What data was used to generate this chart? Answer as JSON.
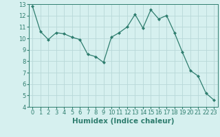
{
  "x": [
    0,
    1,
    2,
    3,
    4,
    5,
    6,
    7,
    8,
    9,
    10,
    11,
    12,
    13,
    14,
    15,
    16,
    17,
    18,
    19,
    20,
    21,
    22,
    23
  ],
  "y": [
    12.8,
    10.6,
    9.9,
    10.5,
    10.4,
    10.1,
    9.9,
    8.6,
    8.4,
    7.9,
    10.1,
    10.5,
    11.0,
    12.1,
    10.9,
    12.5,
    11.7,
    12.0,
    10.5,
    8.8,
    7.2,
    6.7,
    5.2,
    4.6
  ],
  "line_color": "#2e7d6e",
  "marker": "D",
  "marker_size": 2.0,
  "bg_color": "#d6f0ef",
  "grid_color": "#b8d8d8",
  "xlabel": "Humidex (Indice chaleur)",
  "xlim": [
    -0.5,
    23.5
  ],
  "ylim": [
    4,
    13
  ],
  "yticks": [
    4,
    5,
    6,
    7,
    8,
    9,
    10,
    11,
    12,
    13
  ],
  "xticks": [
    0,
    1,
    2,
    3,
    4,
    5,
    6,
    7,
    8,
    9,
    10,
    11,
    12,
    13,
    14,
    15,
    16,
    17,
    18,
    19,
    20,
    21,
    22,
    23
  ],
  "axis_color": "#2e7d6e",
  "tick_color": "#2e7d6e",
  "tick_fontsize": 6.0,
  "xlabel_fontsize": 7.5,
  "linewidth": 0.9
}
